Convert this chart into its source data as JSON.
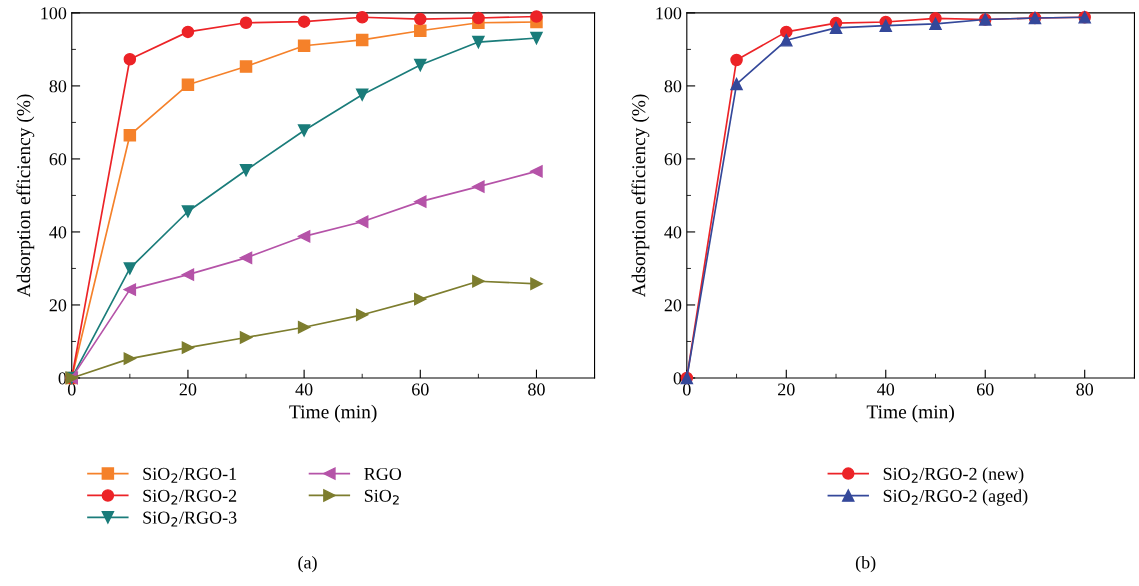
{
  "chart_data": [
    {
      "type": "line",
      "xlabel": "Time (min)",
      "ylabel": "Adsorption efficiency (%)",
      "x": [
        0,
        10,
        20,
        30,
        40,
        50,
        60,
        70,
        80
      ],
      "series": [
        {
          "name": "SiO$_{2}$/RGO-1",
          "color": "#f5812a",
          "marker": "square",
          "values": [
            0,
            66.5,
            80.3,
            85.3,
            91,
            92.6,
            95.1,
            97.3,
            97.5
          ]
        },
        {
          "name": "SiO$_{2}$/RGO-2",
          "color": "#ec2327",
          "marker": "circle",
          "values": [
            0,
            87.3,
            94.8,
            97.3,
            97.6,
            98.8,
            98.3,
            98.6,
            99
          ]
        },
        {
          "name": "SiO$_{2}$/RGO-3",
          "color": "#1a7c7a",
          "marker": "triangle_down",
          "values": [
            0,
            30,
            45.6,
            56.9,
            67.8,
            77.6,
            85.7,
            92,
            93.1
          ]
        },
        {
          "name": "RGO",
          "color": "#b553a8",
          "marker": "triangle_left",
          "values": [
            0,
            24.2,
            28.3,
            32.9,
            38.8,
            42.8,
            48.3,
            52.4,
            56.6
          ]
        },
        {
          "name": "SiO$_{2}$",
          "color": "#7d7d2e",
          "marker": "triangle_right",
          "values": [
            0,
            5.3,
            8.3,
            11.1,
            13.9,
            17.3,
            21.6,
            26.5,
            25.8
          ]
        }
      ],
      "xlim": [
        0,
        90
      ],
      "xticks": [
        0,
        20,
        40,
        60,
        80
      ],
      "ylim": [
        0,
        100
      ],
      "yticks": [
        0,
        20,
        40,
        60,
        80,
        100
      ],
      "grid": false,
      "legend": "bottom",
      "line_style": "solid",
      "annotations": [
        "(a)"
      ]
    },
    {
      "type": "line",
      "xlabel": "Time (min)",
      "ylabel": "Adsorption efficiency (%)",
      "x": [
        0,
        10,
        20,
        30,
        40,
        50,
        60,
        70,
        80
      ],
      "series": [
        {
          "name": "SiO$_{2}$/RGO-2 (new)",
          "color": "#ec2327",
          "marker": "circle",
          "values": [
            0,
            87.1,
            94.8,
            97.2,
            97.5,
            98.5,
            98.2,
            98.6,
            98.8
          ]
        },
        {
          "name": "SiO$_{2}$/RGO-2 (aged)",
          "color": "#34489a",
          "marker": "triangle",
          "values": [
            0,
            80.5,
            92.5,
            95.9,
            96.5,
            97,
            98.2,
            98.6,
            98.8
          ]
        }
      ],
      "xlim": [
        0,
        90
      ],
      "xticks": [
        0,
        20,
        40,
        60,
        80
      ],
      "ylim": [
        0,
        100
      ],
      "yticks": [
        0,
        20,
        40,
        60,
        80,
        100
      ],
      "grid": false,
      "legend": "bottom",
      "line_style": "solid",
      "annotations": [
        "(b)"
      ]
    }
  ]
}
